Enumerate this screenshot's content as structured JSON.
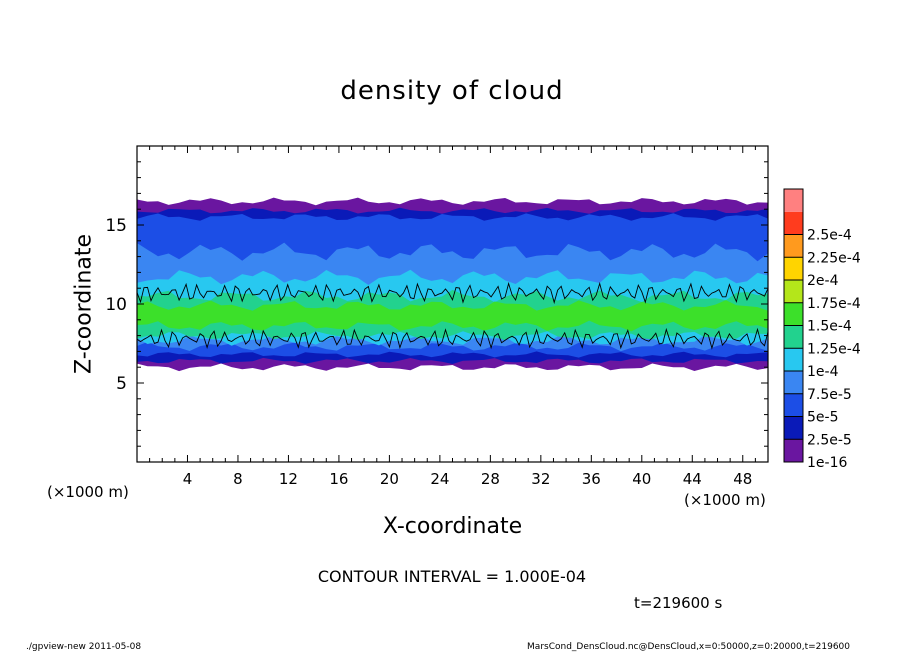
{
  "chart_data": {
    "type": "heatmap",
    "title": "density of cloud",
    "xlabel": "X-coordinate",
    "ylabel": "Z-coordinate",
    "x_unit_label": "(×1000 m)",
    "xlim": [
      0,
      50
    ],
    "ylim": [
      0,
      20
    ],
    "x_ticks": [
      "4",
      "8",
      "12",
      "16",
      "20",
      "24",
      "28",
      "32",
      "36",
      "40",
      "44",
      "48"
    ],
    "x_tick_values": [
      4,
      8,
      12,
      16,
      20,
      24,
      28,
      32,
      36,
      40,
      44,
      48
    ],
    "y_ticks": [
      "5",
      "10",
      "15"
    ],
    "y_tick_values": [
      5,
      10,
      15
    ],
    "colorbar": {
      "labels": [
        "1e-16",
        "2.5e-5",
        "5e-5",
        "7.5e-5",
        "1e-4",
        "1.25e-4",
        "1.5e-4",
        "1.75e-4",
        "2e-4",
        "2.25e-4",
        "2.5e-4"
      ],
      "colors": [
        "#6a16a0",
        "#0a1ab8",
        "#1c4ee6",
        "#3a86f2",
        "#28c8f0",
        "#22d28e",
        "#3ce02a",
        "#b4e61a",
        "#ffd400",
        "#ff9a1e",
        "#ff3c1e",
        "#ff8080"
      ]
    },
    "cloud_layer": {
      "bottom_km": 6,
      "top_km": 16.5,
      "peak_density_band_km": [
        8,
        10.5
      ],
      "peak_density": 0.00012
    },
    "contour_interval_text": "CONTOUR INTERVAL = 1.000E-04",
    "time_text": "t=219600 s"
  },
  "footer": {
    "program": "./gpview-new  2011-05-08",
    "source": "MarsCond_DensCloud.nc@DensCloud,x=0:50000,z=0:20000,t=219600"
  }
}
